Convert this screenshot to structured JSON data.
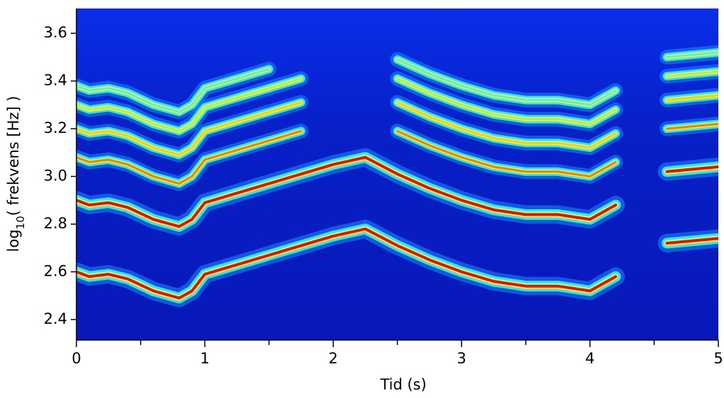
{
  "chart_data": {
    "type": "spectrogram",
    "xlabel": "Tid (s)",
    "ylabel": [
      "log",
      "10",
      "( frekvens [Hz] )"
    ],
    "xlim": [
      0,
      5
    ],
    "ylim": [
      2.314,
      3.704
    ],
    "xticks": [
      0,
      1,
      2,
      3,
      4,
      5
    ],
    "xminorticks": [
      0.5,
      1.5,
      2.5,
      3.5,
      4.5
    ],
    "yticks": [
      2.4,
      2.6,
      2.8,
      {
        "value": 3,
        "label": "3.0"
      },
      3.2,
      3.4,
      3.6
    ],
    "x": [
      0,
      0.1,
      0.25,
      0.4,
      0.6,
      0.8,
      0.9,
      1.0,
      1.25,
      1.5,
      1.75,
      2.0,
      2.25,
      2.5,
      2.75,
      3.0,
      3.25,
      3.5,
      3.75,
      4.0,
      4.2,
      4.4,
      4.6,
      5.0
    ],
    "series": [
      {
        "color": "#e01010",
        "values": [
          2.6,
          2.58,
          2.59,
          2.57,
          2.52,
          2.49,
          2.52,
          2.59,
          2.63,
          2.67,
          2.71,
          2.75,
          2.78,
          2.71,
          2.65,
          2.6,
          2.56,
          2.54,
          2.54,
          2.52,
          2.58,
          null,
          2.72,
          2.74
        ]
      },
      {
        "color": "#e01010",
        "values": [
          2.9,
          2.88,
          2.89,
          2.87,
          2.82,
          2.79,
          2.82,
          2.89,
          2.93,
          2.97,
          3.01,
          3.05,
          3.08,
          3.01,
          2.95,
          2.9,
          2.86,
          2.84,
          2.84,
          2.82,
          2.88,
          null,
          3.02,
          3.04
        ]
      },
      {
        "color": "#f08010",
        "values": [
          3.08,
          3.06,
          3.07,
          3.05,
          3.0,
          2.97,
          3.0,
          3.07,
          3.11,
          3.15,
          3.19,
          null,
          null,
          3.19,
          3.13,
          3.08,
          3.04,
          3.02,
          3.02,
          3.0,
          3.06,
          null,
          3.2,
          3.22
        ]
      },
      {
        "color": "#f0d020",
        "values": [
          3.2,
          3.18,
          3.19,
          3.17,
          3.12,
          3.09,
          3.12,
          3.19,
          3.23,
          3.27,
          3.31,
          null,
          null,
          3.31,
          3.25,
          3.2,
          3.16,
          3.14,
          3.14,
          3.12,
          3.18,
          null,
          3.32,
          3.34
        ]
      },
      {
        "color": "#b0f060",
        "values": [
          3.3,
          3.28,
          3.29,
          3.27,
          3.22,
          3.19,
          3.22,
          3.29,
          3.33,
          3.37,
          3.41,
          null,
          null,
          3.41,
          3.35,
          3.3,
          3.26,
          3.24,
          3.24,
          3.22,
          3.28,
          null,
          3.42,
          3.44
        ]
      },
      {
        "color": "#60f0d0",
        "values": [
          3.38,
          3.36,
          3.37,
          3.35,
          3.3,
          3.27,
          3.3,
          3.37,
          3.41,
          3.45,
          null,
          null,
          null,
          3.49,
          3.43,
          3.38,
          3.34,
          3.32,
          3.32,
          3.3,
          3.36,
          null,
          3.5,
          3.52
        ]
      }
    ]
  }
}
